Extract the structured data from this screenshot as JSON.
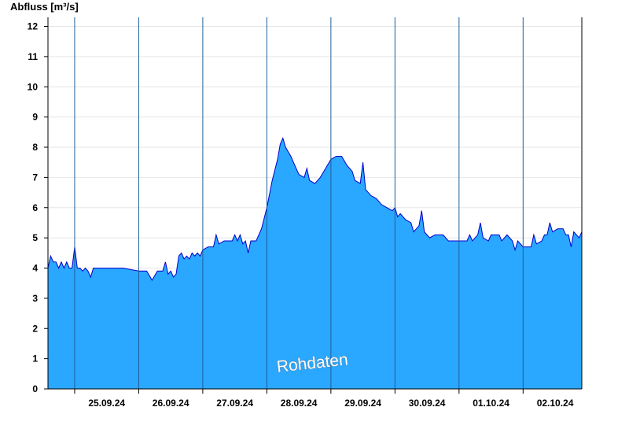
{
  "chart_data": {
    "type": "area",
    "ylabel": "Abfluss [m³/s]",
    "ylim": [
      0,
      12.3
    ],
    "yticks": [
      0,
      1,
      2,
      3,
      4,
      5,
      6,
      7,
      8,
      9,
      10,
      11,
      12
    ],
    "xlim": [
      "2024-09-24T14:00",
      "2024-10-02T22:00"
    ],
    "xticks": [
      {
        "date": "2024-09-25T12:00",
        "label": "25.09.24"
      },
      {
        "date": "2024-09-26T12:00",
        "label": "26.09.24"
      },
      {
        "date": "2024-09-27T12:00",
        "label": "27.09.24"
      },
      {
        "date": "2024-09-28T12:00",
        "label": "28.09.24"
      },
      {
        "date": "2024-09-29T12:00",
        "label": "29.09.24"
      },
      {
        "date": "2024-09-30T12:00",
        "label": "30.09.24"
      },
      {
        "date": "2024-10-01T12:00",
        "label": "01.10.24"
      },
      {
        "date": "2024-10-02T12:00",
        "label": "02.10.24"
      }
    ],
    "day_separators": [
      "2024-09-25T00:00",
      "2024-09-26T00:00",
      "2024-09-27T00:00",
      "2024-09-28T00:00",
      "2024-09-29T00:00",
      "2024-09-30T00:00",
      "2024-10-01T00:00",
      "2024-10-02T00:00"
    ],
    "grid": "horizontal",
    "fill_color": "#2aa7ff",
    "line_color": "#0000cc",
    "watermark": "Rohdaten",
    "series": [
      {
        "points": [
          [
            "2024-09-24T14:00",
            4.0
          ],
          [
            "2024-09-24T15:00",
            4.4
          ],
          [
            "2024-09-24T16:00",
            4.2
          ],
          [
            "2024-09-24T17:00",
            4.2
          ],
          [
            "2024-09-24T18:00",
            4.0
          ],
          [
            "2024-09-24T19:00",
            4.2
          ],
          [
            "2024-09-24T20:00",
            4.0
          ],
          [
            "2024-09-24T21:00",
            4.2
          ],
          [
            "2024-09-24T22:00",
            4.0
          ],
          [
            "2024-09-24T23:00",
            4.0
          ],
          [
            "2024-09-25T00:00",
            4.7
          ],
          [
            "2024-09-25T01:00",
            4.0
          ],
          [
            "2024-09-25T02:00",
            4.0
          ],
          [
            "2024-09-25T03:00",
            3.9
          ],
          [
            "2024-09-25T04:00",
            4.0
          ],
          [
            "2024-09-25T05:00",
            3.9
          ],
          [
            "2024-09-25T06:00",
            3.7
          ],
          [
            "2024-09-25T07:00",
            4.0
          ],
          [
            "2024-09-25T12:00",
            4.0
          ],
          [
            "2024-09-25T18:00",
            4.0
          ],
          [
            "2024-09-26T00:00",
            3.9
          ],
          [
            "2024-09-26T03:00",
            3.9
          ],
          [
            "2024-09-26T05:00",
            3.6
          ],
          [
            "2024-09-26T07:00",
            3.9
          ],
          [
            "2024-09-26T09:00",
            3.9
          ],
          [
            "2024-09-26T10:00",
            4.2
          ],
          [
            "2024-09-26T11:00",
            3.8
          ],
          [
            "2024-09-26T12:00",
            3.9
          ],
          [
            "2024-09-26T13:00",
            3.7
          ],
          [
            "2024-09-26T14:00",
            3.8
          ],
          [
            "2024-09-26T15:00",
            4.4
          ],
          [
            "2024-09-26T16:00",
            4.5
          ],
          [
            "2024-09-26T17:00",
            4.3
          ],
          [
            "2024-09-26T18:00",
            4.4
          ],
          [
            "2024-09-26T19:00",
            4.3
          ],
          [
            "2024-09-26T20:00",
            4.5
          ],
          [
            "2024-09-26T21:00",
            4.4
          ],
          [
            "2024-09-26T22:00",
            4.5
          ],
          [
            "2024-09-26T23:00",
            4.4
          ],
          [
            "2024-09-27T00:00",
            4.6
          ],
          [
            "2024-09-27T02:00",
            4.7
          ],
          [
            "2024-09-27T04:00",
            4.7
          ],
          [
            "2024-09-27T05:00",
            5.1
          ],
          [
            "2024-09-27T06:00",
            4.8
          ],
          [
            "2024-09-27T08:00",
            4.9
          ],
          [
            "2024-09-27T11:00",
            4.9
          ],
          [
            "2024-09-27T12:00",
            5.1
          ],
          [
            "2024-09-27T13:00",
            4.9
          ],
          [
            "2024-09-27T14:00",
            5.1
          ],
          [
            "2024-09-27T15:00",
            4.8
          ],
          [
            "2024-09-27T16:00",
            4.9
          ],
          [
            "2024-09-27T17:00",
            4.5
          ],
          [
            "2024-09-27T18:00",
            4.9
          ],
          [
            "2024-09-27T20:00",
            4.9
          ],
          [
            "2024-09-27T22:00",
            5.3
          ],
          [
            "2024-09-28T00:00",
            6.0
          ],
          [
            "2024-09-28T02:00",
            6.9
          ],
          [
            "2024-09-28T04:00",
            7.6
          ],
          [
            "2024-09-28T05:00",
            8.1
          ],
          [
            "2024-09-28T06:00",
            8.3
          ],
          [
            "2024-09-28T07:00",
            8.0
          ],
          [
            "2024-09-28T09:00",
            7.7
          ],
          [
            "2024-09-28T11:00",
            7.3
          ],
          [
            "2024-09-28T12:00",
            7.1
          ],
          [
            "2024-09-28T14:00",
            7.0
          ],
          [
            "2024-09-28T15:00",
            7.3
          ],
          [
            "2024-09-28T16:00",
            6.9
          ],
          [
            "2024-09-28T18:00",
            6.8
          ],
          [
            "2024-09-28T20:00",
            7.0
          ],
          [
            "2024-09-28T22:00",
            7.3
          ],
          [
            "2024-09-29T00:00",
            7.6
          ],
          [
            "2024-09-29T02:00",
            7.7
          ],
          [
            "2024-09-29T04:00",
            7.7
          ],
          [
            "2024-09-29T06:00",
            7.4
          ],
          [
            "2024-09-29T08:00",
            7.2
          ],
          [
            "2024-09-29T09:00",
            6.9
          ],
          [
            "2024-09-29T11:00",
            6.8
          ],
          [
            "2024-09-29T12:00",
            7.5
          ],
          [
            "2024-09-29T13:00",
            6.6
          ],
          [
            "2024-09-29T15:00",
            6.4
          ],
          [
            "2024-09-29T17:00",
            6.3
          ],
          [
            "2024-09-29T19:00",
            6.1
          ],
          [
            "2024-09-29T21:00",
            6.0
          ],
          [
            "2024-09-29T23:00",
            5.9
          ],
          [
            "2024-09-30T00:00",
            6.0
          ],
          [
            "2024-09-30T01:00",
            5.7
          ],
          [
            "2024-09-30T02:00",
            5.8
          ],
          [
            "2024-09-30T04:00",
            5.6
          ],
          [
            "2024-09-30T06:00",
            5.5
          ],
          [
            "2024-09-30T07:00",
            5.2
          ],
          [
            "2024-09-30T09:00",
            5.4
          ],
          [
            "2024-09-30T10:00",
            5.9
          ],
          [
            "2024-09-30T11:00",
            5.2
          ],
          [
            "2024-09-30T13:00",
            5.0
          ],
          [
            "2024-09-30T15:00",
            5.1
          ],
          [
            "2024-09-30T18:00",
            5.1
          ],
          [
            "2024-09-30T20:00",
            4.9
          ],
          [
            "2024-10-01T00:00",
            4.9
          ],
          [
            "2024-10-01T03:00",
            4.9
          ],
          [
            "2024-10-01T04:00",
            5.1
          ],
          [
            "2024-10-01T05:00",
            4.9
          ],
          [
            "2024-10-01T07:00",
            5.1
          ],
          [
            "2024-10-01T08:00",
            5.5
          ],
          [
            "2024-10-01T09:00",
            5.0
          ],
          [
            "2024-10-01T11:00",
            4.9
          ],
          [
            "2024-10-01T12:00",
            5.1
          ],
          [
            "2024-10-01T15:00",
            5.1
          ],
          [
            "2024-10-01T16:00",
            4.9
          ],
          [
            "2024-10-01T18:00",
            5.1
          ],
          [
            "2024-10-01T20:00",
            4.9
          ],
          [
            "2024-10-01T21:00",
            4.6
          ],
          [
            "2024-10-01T22:00",
            4.9
          ],
          [
            "2024-10-02T00:00",
            4.7
          ],
          [
            "2024-10-02T03:00",
            4.7
          ],
          [
            "2024-10-02T04:00",
            5.1
          ],
          [
            "2024-10-02T05:00",
            4.8
          ],
          [
            "2024-10-02T07:00",
            4.9
          ],
          [
            "2024-10-02T08:00",
            5.1
          ],
          [
            "2024-10-02T09:00",
            5.1
          ],
          [
            "2024-10-02T10:00",
            5.5
          ],
          [
            "2024-10-02T11:00",
            5.2
          ],
          [
            "2024-10-02T13:00",
            5.3
          ],
          [
            "2024-10-02T15:00",
            5.3
          ],
          [
            "2024-10-02T16:00",
            5.1
          ],
          [
            "2024-10-02T17:00",
            5.1
          ],
          [
            "2024-10-02T18:00",
            4.7
          ],
          [
            "2024-10-02T19:00",
            5.2
          ],
          [
            "2024-10-02T20:00",
            5.1
          ],
          [
            "2024-10-02T21:00",
            5.0
          ],
          [
            "2024-10-02T22:00",
            5.2
          ]
        ]
      }
    ]
  }
}
